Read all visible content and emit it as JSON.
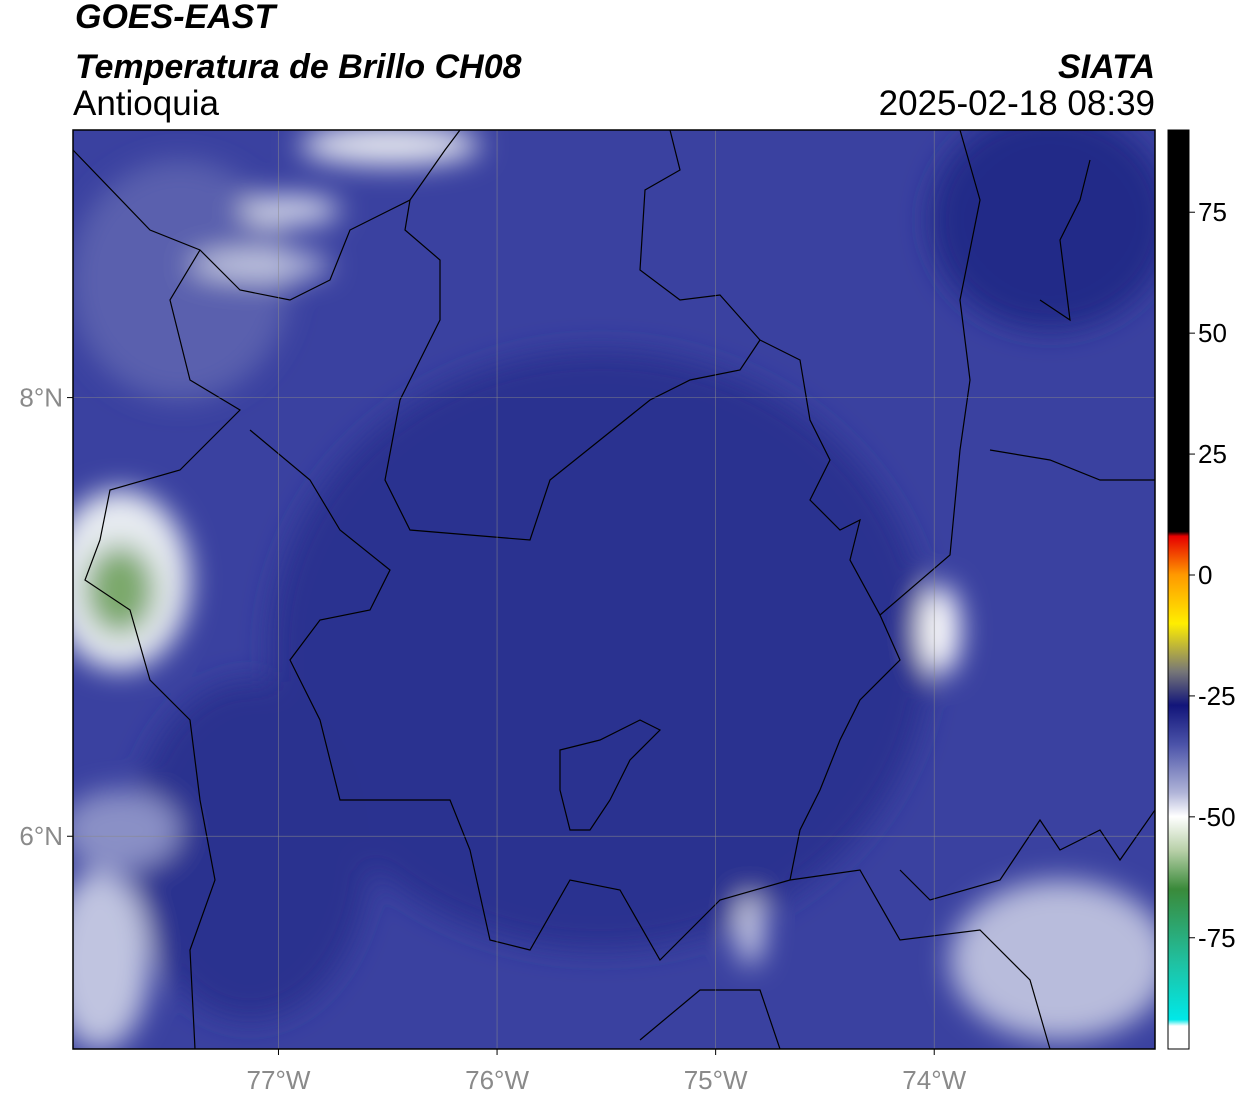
{
  "header": {
    "title": "GOES-EAST",
    "subtitle": "Temperatura de Brillo CH08",
    "region": "Antioquia",
    "source": "SIATA",
    "datetime": "2025-02-18 08:39"
  },
  "map": {
    "xlim": [
      -77.94,
      -72.99
    ],
    "ylim": [
      5.03,
      9.22
    ],
    "xticks": [
      {
        "value": -77,
        "label": "77°W"
      },
      {
        "value": -76,
        "label": "76°W"
      },
      {
        "value": -75,
        "label": "75°W"
      },
      {
        "value": -74,
        "label": "74°W"
      }
    ],
    "yticks": [
      {
        "value": 6,
        "label": "6°N"
      },
      {
        "value": 8,
        "label": "8°N"
      }
    ],
    "grid": true
  },
  "colorbar": {
    "lim": [
      -98,
      92
    ],
    "ticks": [
      75,
      50,
      25,
      0,
      -25,
      -50,
      -75
    ]
  }
}
